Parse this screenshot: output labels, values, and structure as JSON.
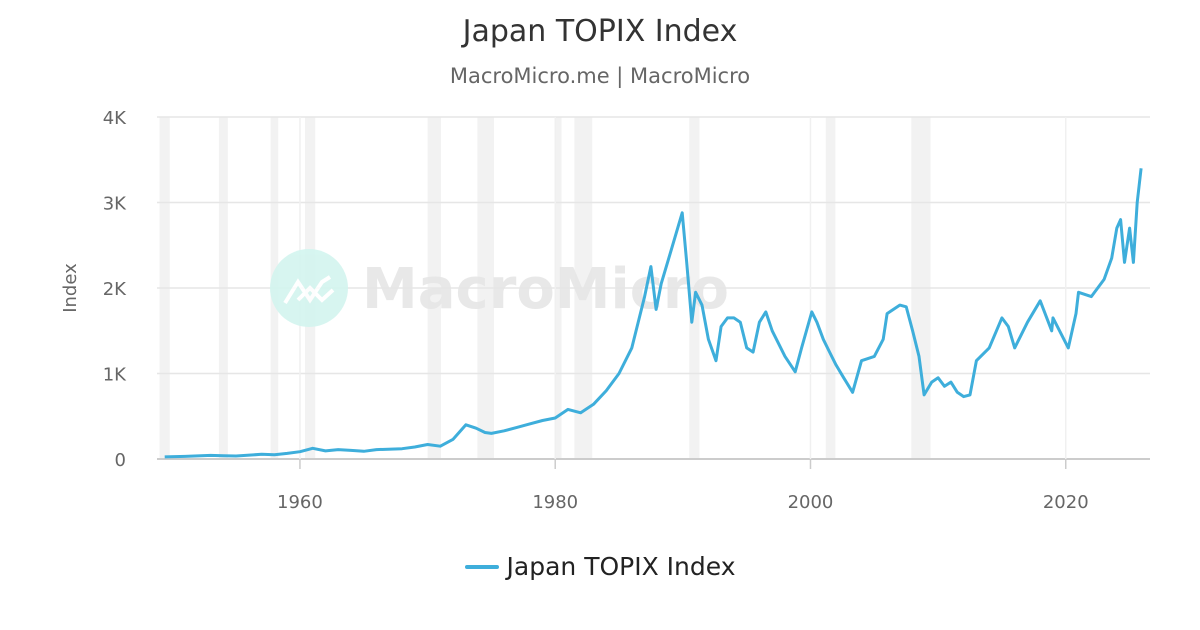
{
  "chart_data": {
    "type": "line",
    "title": "Japan TOPIX Index",
    "subtitle": "MacroMicro.me | MacroMicro",
    "watermark": "MacroMicro",
    "ylabel": "Index",
    "xlabel": "",
    "xlim": [
      1948.8,
      2026.6
    ],
    "ylim": [
      0,
      4000
    ],
    "x_ticks": [
      1960,
      1980,
      2000,
      2020
    ],
    "y_ticks": [
      {
        "value": 0,
        "label": "0"
      },
      {
        "value": 1000,
        "label": "1K"
      },
      {
        "value": 2000,
        "label": "2K"
      },
      {
        "value": 3000,
        "label": "3K"
      },
      {
        "value": 4000,
        "label": "4K"
      }
    ],
    "grid": true,
    "legend_placement": "bottom",
    "colors": {
      "series": "#3eaedb",
      "recession": "#f2f2f2",
      "grid": "#e6e6e6"
    },
    "recession_bands": [
      [
        1949.0,
        1949.8
      ],
      [
        1953.65,
        1954.35
      ],
      [
        1957.7,
        1958.3
      ],
      [
        1960.4,
        1961.2
      ],
      [
        1970.0,
        1971.05
      ],
      [
        1973.9,
        1975.2
      ],
      [
        1980.0,
        1980.5
      ],
      [
        1981.5,
        1982.9
      ],
      [
        1990.5,
        1991.3
      ],
      [
        2001.2,
        2001.95
      ],
      [
        2007.9,
        2009.4
      ]
    ],
    "series": [
      {
        "name": "Japan TOPIX Index",
        "points": [
          [
            1949.4,
            25
          ],
          [
            1951,
            30
          ],
          [
            1953,
            42
          ],
          [
            1954,
            38
          ],
          [
            1955,
            35
          ],
          [
            1957,
            55
          ],
          [
            1958,
            50
          ],
          [
            1959,
            65
          ],
          [
            1960,
            85
          ],
          [
            1961,
            125
          ],
          [
            1962,
            95
          ],
          [
            1963,
            110
          ],
          [
            1964,
            100
          ],
          [
            1965,
            90
          ],
          [
            1966,
            110
          ],
          [
            1968,
            120
          ],
          [
            1969,
            140
          ],
          [
            1970,
            170
          ],
          [
            1971,
            150
          ],
          [
            1972,
            230
          ],
          [
            1973,
            400
          ],
          [
            1973.8,
            360
          ],
          [
            1974.5,
            310
          ],
          [
            1975,
            300
          ],
          [
            1976,
            330
          ],
          [
            1977,
            370
          ],
          [
            1978,
            410
          ],
          [
            1979,
            450
          ],
          [
            1980,
            480
          ],
          [
            1981,
            580
          ],
          [
            1982,
            540
          ],
          [
            1983,
            640
          ],
          [
            1984,
            800
          ],
          [
            1985,
            1000
          ],
          [
            1986,
            1300
          ],
          [
            1987,
            1900
          ],
          [
            1987.5,
            2250
          ],
          [
            1987.9,
            1750
          ],
          [
            1988.3,
            2050
          ],
          [
            1989,
            2400
          ],
          [
            1989.95,
            2880
          ],
          [
            1990.3,
            2300
          ],
          [
            1990.7,
            1600
          ],
          [
            1991,
            1950
          ],
          [
            1991.5,
            1800
          ],
          [
            1992,
            1400
          ],
          [
            1992.6,
            1150
          ],
          [
            1993,
            1550
          ],
          [
            1993.5,
            1650
          ],
          [
            1994,
            1650
          ],
          [
            1994.5,
            1600
          ],
          [
            1995,
            1300
          ],
          [
            1995.5,
            1250
          ],
          [
            1996,
            1600
          ],
          [
            1996.5,
            1720
          ],
          [
            1997,
            1500
          ],
          [
            1998,
            1200
          ],
          [
            1998.8,
            1020
          ],
          [
            1999.3,
            1300
          ],
          [
            2000.1,
            1720
          ],
          [
            2000.5,
            1600
          ],
          [
            2001,
            1400
          ],
          [
            2001.5,
            1250
          ],
          [
            2002,
            1100
          ],
          [
            2002.6,
            950
          ],
          [
            2003.3,
            780
          ],
          [
            2004,
            1150
          ],
          [
            2005,
            1200
          ],
          [
            2005.7,
            1400
          ],
          [
            2006,
            1700
          ],
          [
            2007,
            1800
          ],
          [
            2007.5,
            1780
          ],
          [
            2008,
            1500
          ],
          [
            2008.5,
            1200
          ],
          [
            2008.9,
            750
          ],
          [
            2009.5,
            900
          ],
          [
            2010,
            950
          ],
          [
            2010.5,
            850
          ],
          [
            2011,
            900
          ],
          [
            2011.5,
            780
          ],
          [
            2012,
            730
          ],
          [
            2012.5,
            750
          ],
          [
            2013,
            1150
          ],
          [
            2014,
            1300
          ],
          [
            2015,
            1650
          ],
          [
            2015.5,
            1550
          ],
          [
            2016,
            1300
          ],
          [
            2017,
            1600
          ],
          [
            2018,
            1850
          ],
          [
            2018.9,
            1500
          ],
          [
            2019,
            1650
          ],
          [
            2020.2,
            1300
          ],
          [
            2020.8,
            1700
          ],
          [
            2021,
            1950
          ],
          [
            2022,
            1900
          ],
          [
            2023,
            2100
          ],
          [
            2023.6,
            2350
          ],
          [
            2024,
            2700
          ],
          [
            2024.3,
            2800
          ],
          [
            2024.6,
            2300
          ],
          [
            2025,
            2700
          ],
          [
            2025.3,
            2300
          ],
          [
            2025.6,
            3000
          ],
          [
            2025.9,
            3400
          ]
        ]
      }
    ]
  }
}
